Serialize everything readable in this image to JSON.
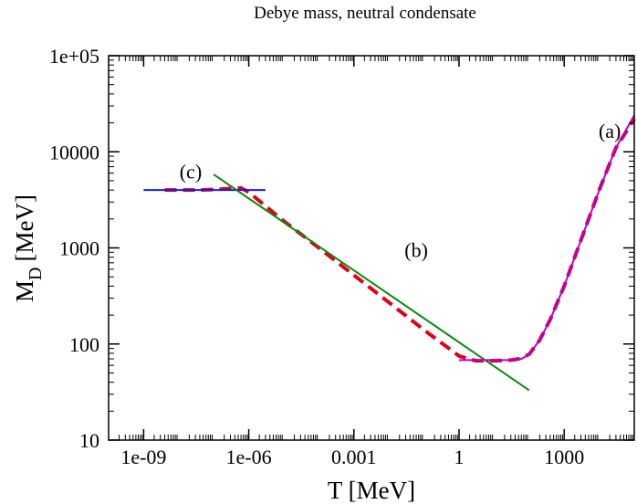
{
  "chart_data": {
    "type": "line",
    "title": "Debye mass, neutral condensate",
    "xlabel": "T [MeV]",
    "ylabel_main": "M",
    "ylabel_sub": "D",
    "ylabel_unit": "[MeV]",
    "x_scale": "log",
    "y_scale": "log",
    "xlim": [
      1e-10,
      100000
    ],
    "ylim": [
      10,
      100000
    ],
    "x_tick_values": [
      1e-09,
      1e-06,
      0.001,
      1,
      1000
    ],
    "x_tick_labels": [
      "1e-09",
      "1e-06",
      "0.001",
      "1",
      "1000"
    ],
    "y_tick_values": [
      10,
      100,
      1000,
      10000,
      100000
    ],
    "y_tick_labels": [
      "10",
      "100",
      "1000",
      "10000",
      "1e+05"
    ],
    "grid": false,
    "annotations": [
      {
        "text": "(a)",
        "x": 20000,
        "y": 14000
      },
      {
        "text": "(b)",
        "x": 0.06,
        "y": 800
      },
      {
        "text": "(c)",
        "x": 2.2e-08,
        "y": 5300
      }
    ],
    "series": [
      {
        "color": "#e0001a",
        "dash": "dashed",
        "x": [
          4e-09,
          1e-08,
          3e-08,
          1e-07,
          3e-07,
          6e-07,
          1e-06,
          1e-05,
          0.0001,
          0.001,
          0.01,
          0.1,
          1,
          3,
          10,
          30,
          50,
          100,
          200,
          400,
          1000,
          3000,
          10000,
          30000,
          100000
        ],
        "y": [
          4000,
          4000,
          4000,
          4050,
          4150,
          4200,
          3800,
          1900,
          1000,
          520,
          270,
          140,
          75,
          67,
          67,
          68,
          70,
          78,
          110,
          180,
          400,
          1200,
          4000,
          11000,
          22000
        ]
      },
      {
        "color": "#1a1ae6",
        "dash": "solid",
        "x": [
          1e-09,
          3e-06
        ],
        "y": [
          4000,
          4000
        ]
      },
      {
        "color": "#0a8a0a",
        "dash": "solid",
        "x": [
          1e-07,
          100
        ],
        "y": [
          5800,
          33
        ]
      },
      {
        "color": "#b000e0",
        "dash": "solid",
        "x": [
          1,
          30,
          60,
          100,
          200,
          400,
          1000,
          3000,
          10000,
          30000,
          100000
        ],
        "y": [
          68,
          68,
          70,
          78,
          110,
          180,
          400,
          1200,
          4000,
          11000,
          24000
        ]
      }
    ]
  }
}
